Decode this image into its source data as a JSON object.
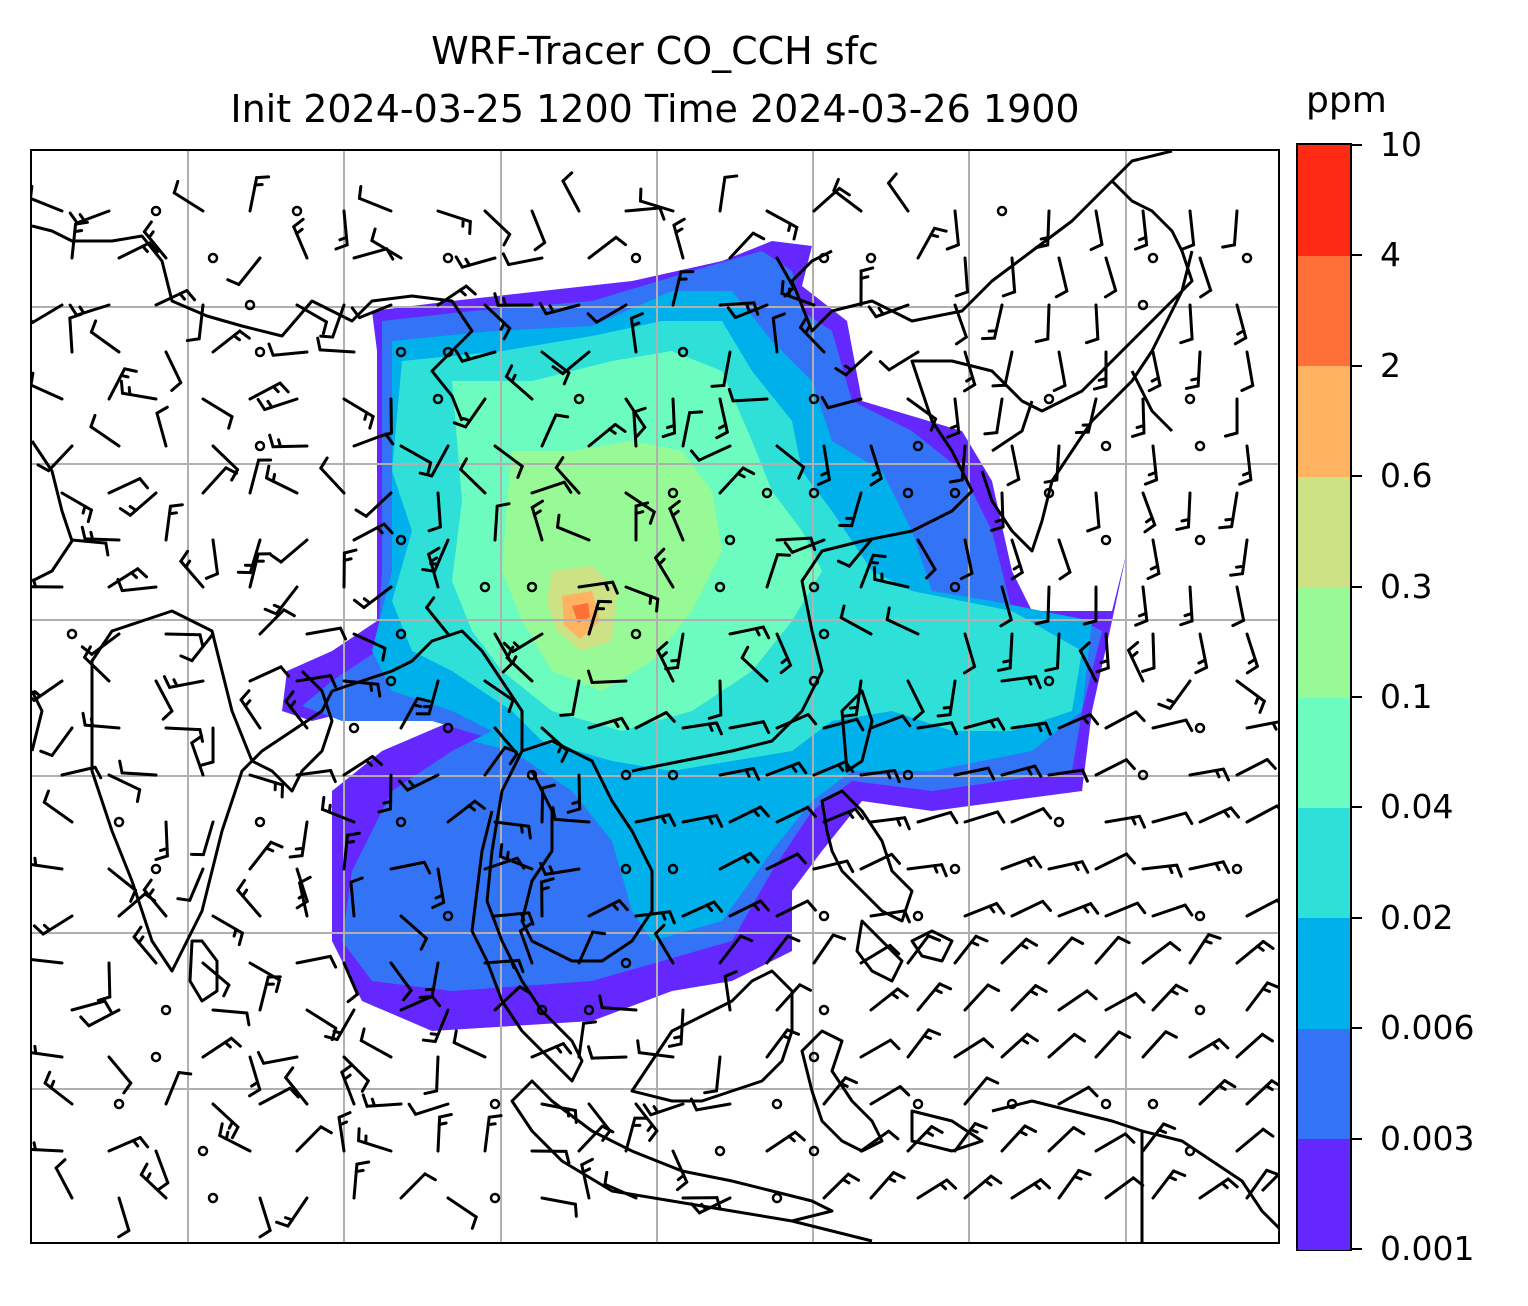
{
  "title": {
    "line1": "WRF-Tracer CO_CCH sfc",
    "line2": "Init 2024-03-25 1200 Time 2024-03-26 1900"
  },
  "colorbar": {
    "unit": "ppm",
    "levels": [
      "0.001",
      "0.003",
      "0.006",
      "0.02",
      "0.04",
      "0.1",
      "0.3",
      "0.6",
      "2",
      "4",
      "10"
    ],
    "colors": [
      "#6428ff",
      "#3274f5",
      "#00b0ea",
      "#2ee0d8",
      "#6cfcbf",
      "#97fa96",
      "#cde185",
      "#ffb25f",
      "#ff6f38",
      "#ff2a14"
    ]
  },
  "map": {
    "gridline_color": "#b0b0b0",
    "coastline_color": "#000000",
    "barb_color": "#000000"
  }
}
